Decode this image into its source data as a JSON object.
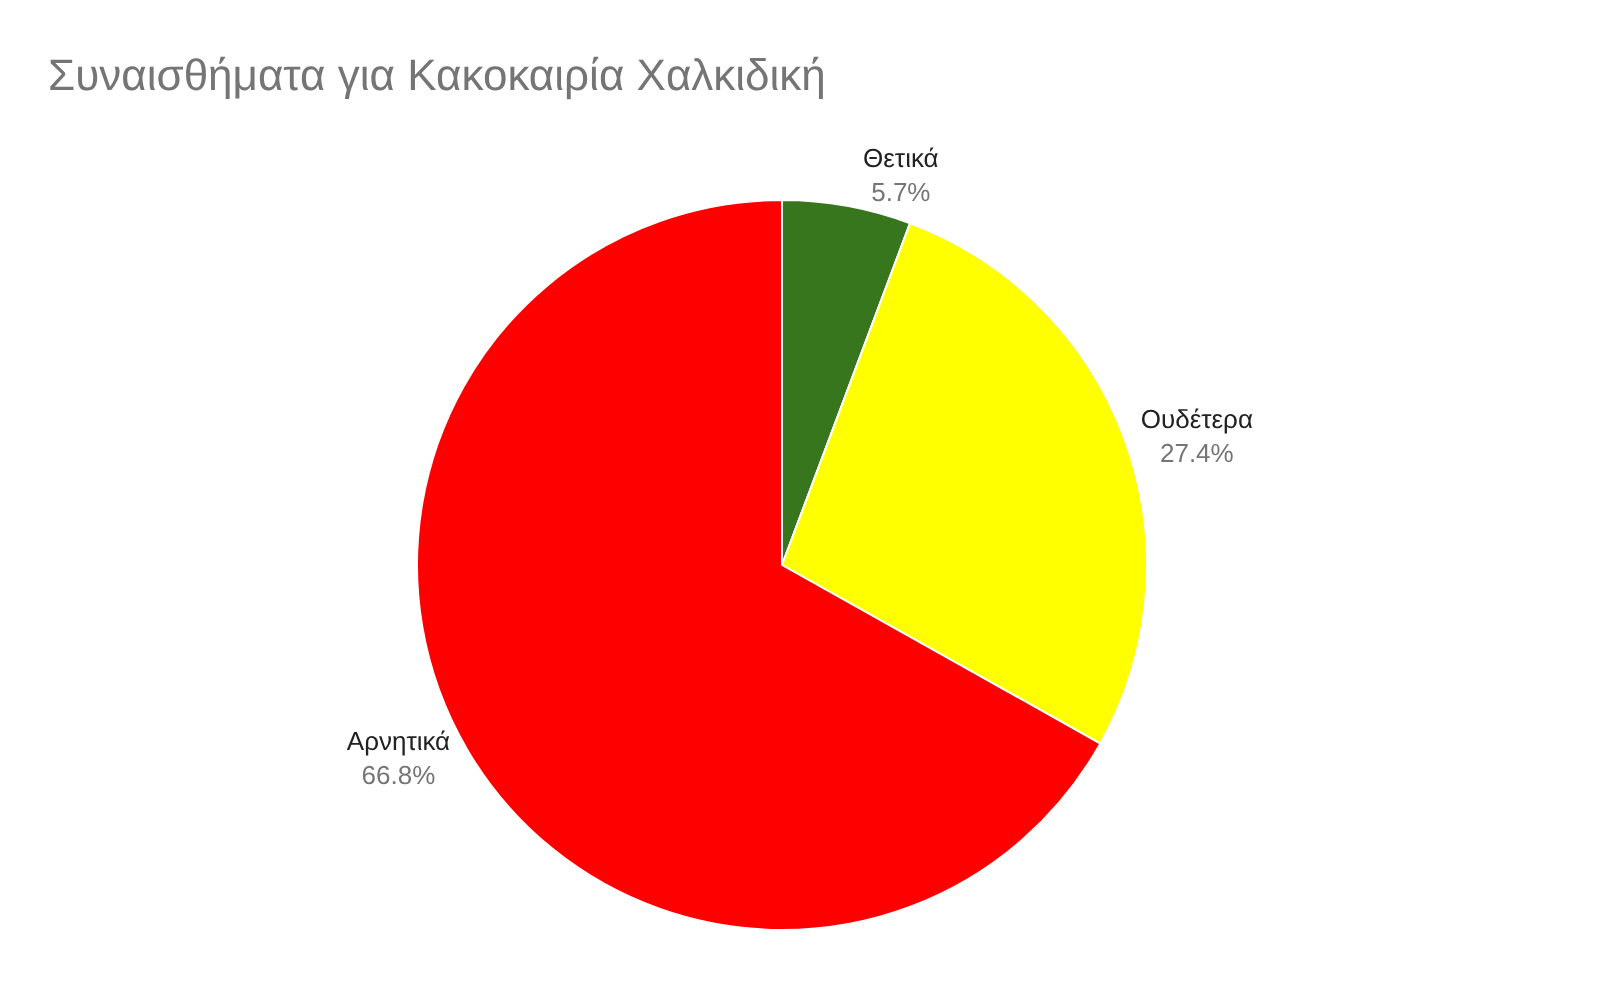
{
  "chart_data": {
    "type": "pie",
    "title": "Συναισθήματα για Κακοκαιρία Χαλκιδική",
    "categories": [
      "Θετικά",
      "Ουδέτερα",
      "Αρνητικά"
    ],
    "values": [
      5.7,
      27.4,
      66.8
    ],
    "colors": [
      "#38761d",
      "#ffff00",
      "#ff0000"
    ],
    "value_labels": [
      "5.7%",
      "27.4%",
      "66.8%"
    ],
    "legend": false
  }
}
